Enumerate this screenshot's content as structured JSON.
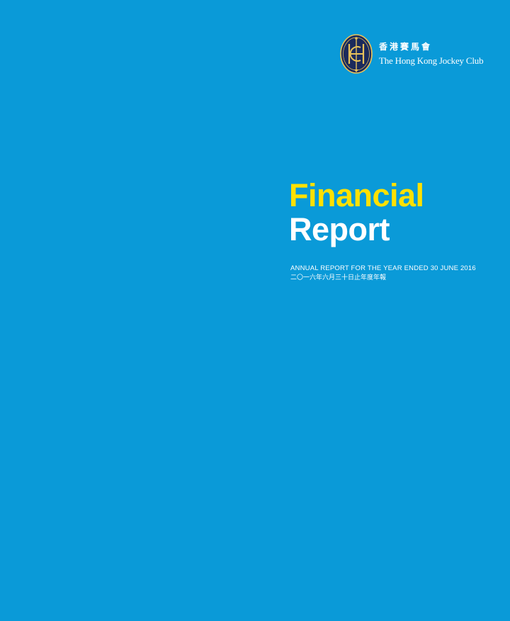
{
  "colors": {
    "background": "#0a9ad8",
    "title_accent": "#ffe100",
    "text": "#ffffff",
    "emblem_fill": "#1b2a5c",
    "emblem_gold": "#e8c25a"
  },
  "logo": {
    "icon": "hkjc-emblem-icon",
    "name_cn": "香港賽馬會",
    "name_en": "The Hong Kong Jockey Club"
  },
  "title": {
    "line1": "Financial",
    "line2": "Report"
  },
  "subtitle": {
    "english": "ANNUAL REPORT FOR THE YEAR ENDED 30 JUNE 2016",
    "chinese": "二〇一六年六月三十日止年度年報"
  }
}
